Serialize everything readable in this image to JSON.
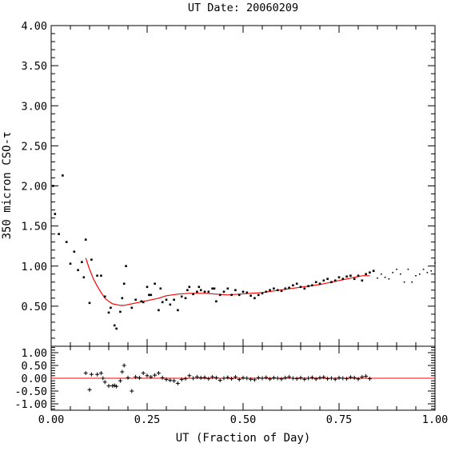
{
  "chart_data": {
    "title": "UT Date: 20060209",
    "xlabel": "UT (Fraction of Day)",
    "ylabel": "350 micron CSO-τ",
    "xlim": [
      0,
      1
    ],
    "x_ticks": [
      "0.00",
      "0.25",
      "0.50",
      "0.75",
      "1.00"
    ],
    "x_tick_values": [
      0,
      0.25,
      0.5,
      0.75,
      1.0
    ],
    "fit_color": "#ff0000",
    "point_color": "#000000",
    "main_panel": {
      "type": "scatter",
      "ylim": [
        0,
        4
      ],
      "y_ticks": [
        "0.50",
        "1.00",
        "1.50",
        "2.00",
        "2.50",
        "3.00",
        "3.50",
        "4.00"
      ],
      "y_tick_values": [
        0.5,
        1.0,
        1.5,
        2.0,
        2.5,
        3.0,
        3.5,
        4.0
      ],
      "points": {
        "x": [
          0.005,
          0.01,
          0.02,
          0.03,
          0.04,
          0.05,
          0.06,
          0.07,
          0.08,
          0.085,
          0.09,
          0.1,
          0.105,
          0.12,
          0.13,
          0.14,
          0.15,
          0.155,
          0.165,
          0.17,
          0.18,
          0.185,
          0.19,
          0.195,
          0.21,
          0.22,
          0.235,
          0.24,
          0.25,
          0.255,
          0.26,
          0.27,
          0.28,
          0.285,
          0.29,
          0.3,
          0.31,
          0.32,
          0.33,
          0.34,
          0.35,
          0.355,
          0.36,
          0.37,
          0.38,
          0.385,
          0.39,
          0.4,
          0.41,
          0.42,
          0.425,
          0.43,
          0.44,
          0.45,
          0.46,
          0.47,
          0.48,
          0.49,
          0.5,
          0.51,
          0.52,
          0.53,
          0.54,
          0.55,
          0.56,
          0.57,
          0.58,
          0.59,
          0.6,
          0.61,
          0.62,
          0.63,
          0.64,
          0.65,
          0.66,
          0.67,
          0.68,
          0.69,
          0.7,
          0.71,
          0.72,
          0.73,
          0.74,
          0.75,
          0.76,
          0.77,
          0.78,
          0.79,
          0.8,
          0.81,
          0.82,
          0.83,
          0.84,
          0.85,
          0.86,
          0.87,
          0.88,
          0.89,
          0.9,
          0.91,
          0.92,
          0.93,
          0.94,
          0.95,
          0.96,
          0.97,
          0.98,
          0.99,
          1.0
        ],
        "y": [
          2.0,
          1.65,
          1.4,
          2.13,
          1.3,
          1.03,
          1.18,
          0.95,
          1.05,
          0.86,
          1.33,
          0.54,
          1.08,
          0.88,
          0.88,
          0.62,
          0.42,
          0.48,
          0.26,
          0.22,
          0.43,
          0.6,
          0.78,
          1.0,
          0.48,
          0.58,
          0.56,
          0.55,
          0.74,
          0.64,
          0.64,
          0.78,
          0.45,
          0.72,
          0.55,
          0.58,
          0.52,
          0.58,
          0.45,
          0.62,
          0.6,
          0.7,
          0.74,
          0.65,
          0.68,
          0.74,
          0.7,
          0.68,
          0.68,
          0.72,
          0.72,
          0.56,
          0.64,
          0.68,
          0.72,
          0.64,
          0.7,
          0.64,
          0.68,
          0.67,
          0.63,
          0.6,
          0.64,
          0.66,
          0.68,
          0.7,
          0.72,
          0.7,
          0.69,
          0.72,
          0.73,
          0.76,
          0.78,
          0.74,
          0.72,
          0.75,
          0.76,
          0.8,
          0.78,
          0.82,
          0.84,
          0.8,
          0.82,
          0.86,
          0.84,
          0.87,
          0.88,
          0.84,
          0.88,
          0.82,
          0.9,
          0.92,
          0.94,
          0.85,
          0.9,
          0.86,
          0.84,
          0.92,
          0.96,
          0.9,
          0.8,
          0.96,
          0.8,
          0.88,
          0.9,
          0.96,
          0.92,
          0.94,
          1.04
        ],
        "filled": [
          true,
          true,
          true,
          true,
          true,
          true,
          true,
          true,
          true,
          true,
          true,
          true,
          true,
          true,
          true,
          true,
          true,
          true,
          true,
          true,
          true,
          true,
          true,
          true,
          true,
          true,
          true,
          true,
          true,
          true,
          true,
          true,
          true,
          true,
          true,
          true,
          true,
          true,
          true,
          true,
          true,
          true,
          true,
          true,
          true,
          true,
          true,
          true,
          true,
          true,
          true,
          true,
          true,
          true,
          true,
          true,
          true,
          true,
          true,
          true,
          true,
          true,
          true,
          true,
          true,
          true,
          true,
          true,
          true,
          true,
          true,
          true,
          true,
          true,
          true,
          true,
          true,
          true,
          true,
          true,
          true,
          true,
          true,
          true,
          true,
          true,
          true,
          true,
          true,
          true,
          true,
          true,
          true,
          false,
          false,
          false,
          false,
          false,
          false,
          false,
          false,
          false,
          false,
          false,
          false,
          false,
          false,
          false,
          false
        ]
      },
      "fit": {
        "x": [
          0.09,
          0.1,
          0.11,
          0.12,
          0.13,
          0.14,
          0.15,
          0.16,
          0.17,
          0.18,
          0.19,
          0.2,
          0.22,
          0.25,
          0.28,
          0.3,
          0.33,
          0.36,
          0.4,
          0.43,
          0.46,
          0.49,
          0.52,
          0.55,
          0.58,
          0.61,
          0.64,
          0.67,
          0.7,
          0.73,
          0.76,
          0.79,
          0.81,
          0.83
        ],
        "y": [
          1.1,
          0.96,
          0.84,
          0.75,
          0.67,
          0.6,
          0.56,
          0.53,
          0.52,
          0.51,
          0.51,
          0.52,
          0.54,
          0.57,
          0.6,
          0.63,
          0.65,
          0.66,
          0.66,
          0.65,
          0.64,
          0.65,
          0.66,
          0.67,
          0.69,
          0.71,
          0.73,
          0.75,
          0.77,
          0.8,
          0.83,
          0.86,
          0.88,
          0.88
        ]
      }
    },
    "residual_panel": {
      "type": "scatter",
      "ylim": [
        -1.25,
        1.25
      ],
      "y_ticks": [
        "1.00",
        "0.50",
        "0.00",
        "-0.50",
        "-1.00"
      ],
      "y_tick_values": [
        1.0,
        0.5,
        0.0,
        -0.5,
        -1.0
      ],
      "zero_line": 0.0,
      "points": {
        "x": [
          0.09,
          0.1,
          0.105,
          0.12,
          0.13,
          0.135,
          0.14,
          0.15,
          0.16,
          0.165,
          0.17,
          0.18,
          0.185,
          0.19,
          0.2,
          0.21,
          0.22,
          0.23,
          0.24,
          0.25,
          0.26,
          0.27,
          0.28,
          0.29,
          0.3,
          0.31,
          0.32,
          0.33,
          0.34,
          0.35,
          0.36,
          0.37,
          0.38,
          0.39,
          0.4,
          0.41,
          0.42,
          0.43,
          0.44,
          0.45,
          0.46,
          0.47,
          0.48,
          0.49,
          0.5,
          0.51,
          0.52,
          0.53,
          0.54,
          0.55,
          0.56,
          0.57,
          0.58,
          0.59,
          0.6,
          0.61,
          0.62,
          0.63,
          0.64,
          0.65,
          0.66,
          0.67,
          0.68,
          0.69,
          0.7,
          0.71,
          0.72,
          0.73,
          0.74,
          0.75,
          0.76,
          0.77,
          0.78,
          0.79,
          0.8,
          0.81,
          0.82,
          0.83
        ],
        "y": [
          0.2,
          -0.45,
          0.15,
          0.15,
          0.2,
          0.0,
          -0.15,
          -0.3,
          -0.3,
          -0.28,
          -0.32,
          -0.1,
          0.25,
          0.5,
          0.02,
          -0.5,
          0.05,
          0.02,
          0.2,
          0.1,
          0.05,
          0.12,
          0.2,
          0.02,
          -0.05,
          -0.08,
          -0.1,
          -0.2,
          -0.05,
          -0.02,
          0.1,
          0.0,
          0.05,
          0.02,
          0.03,
          -0.02,
          0.05,
          0.02,
          -0.08,
          0.0,
          0.03,
          -0.02,
          0.05,
          -0.05,
          0.02,
          0.0,
          -0.04,
          -0.06,
          0.02,
          0.0,
          0.03,
          -0.03,
          0.02,
          0.0,
          -0.03,
          0.02,
          0.05,
          0.0,
          -0.02,
          0.02,
          -0.04,
          0.0,
          0.03,
          -0.03,
          0.02,
          0.04,
          -0.02,
          0.0,
          -0.04,
          0.02,
          0.0,
          -0.02,
          0.04,
          0.02,
          -0.03,
          0.05,
          0.08,
          -0.02
        ]
      }
    }
  }
}
